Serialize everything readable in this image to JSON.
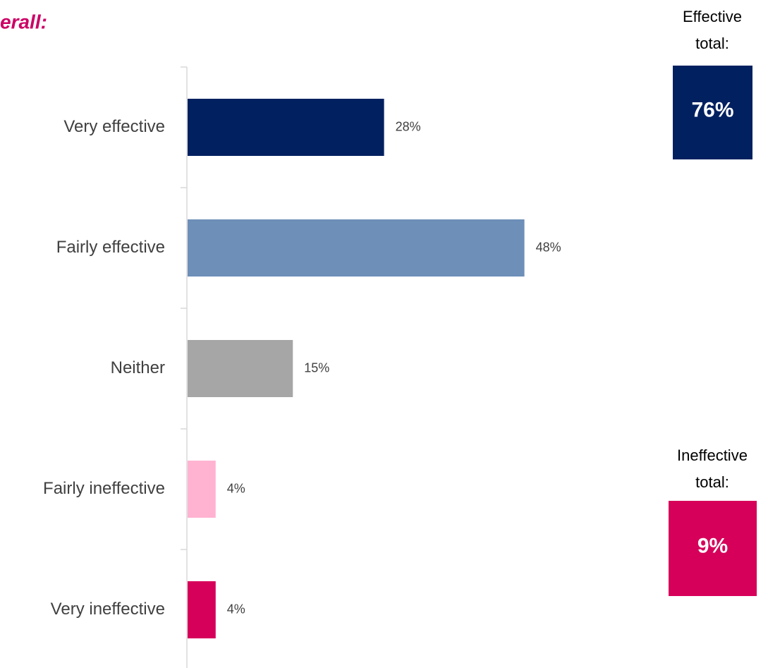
{
  "chart_data": {
    "type": "bar",
    "orientation": "horizontal",
    "title": "erall:",
    "categories": [
      "Very effective",
      "Fairly effective",
      "Neither",
      "Fairly ineffective",
      "Very ineffective"
    ],
    "values": [
      28,
      48,
      15,
      4,
      4
    ],
    "value_labels": [
      "28%",
      "48%",
      "15%",
      "4%",
      "4%"
    ],
    "colors": [
      "#002060",
      "#6d8fb8",
      "#a6a6a6",
      "#ffb3d1",
      "#d6005a"
    ],
    "annotations": [
      {
        "label": [
          "Effective",
          "total:"
        ],
        "text": "76%",
        "color": "#002060"
      },
      {
        "label": [
          "Ineffective",
          "total:"
        ],
        "text": "9%",
        "color": "#d6005a"
      }
    ]
  }
}
